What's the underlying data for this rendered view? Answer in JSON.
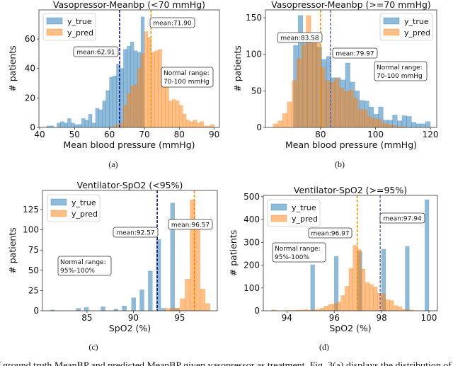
{
  "panel_labels": [
    "(a)",
    "(b)",
    "(c)",
    "(d)"
  ],
  "caption_fragment": "f ground truth MeanBP and predicted MeanBP given vasopressor as treatment. Fig. 3(a) displays the distribution of r",
  "colors": {
    "y_true": "#1f77b4",
    "y_pred": "#ff7f0e",
    "mean_true_a": "#00008b",
    "mean_true_b": "#5b6db5",
    "mean_pred": "#ff8c00"
  },
  "chart_data": [
    {
      "type": "bar",
      "title": "Vasopressor-Meanbp (<70 mmHg)",
      "xlabel": "Mean blood pressure (mmHg)",
      "ylabel": "# patients",
      "xlim": [
        39.8,
        91.5
      ],
      "ylim": [
        0,
        79.7
      ],
      "xticks": [
        "40",
        "50",
        "60",
        "70",
        "80",
        "90"
      ],
      "yticks": [
        "0",
        "20",
        "40",
        "60"
      ],
      "grid": false,
      "legend": {
        "placement": "top-left",
        "entries": [
          "y_true",
          "y_pred"
        ]
      },
      "series": [
        {
          "name": "y_true",
          "bin_start": 42,
          "bin_width": 1,
          "counts": [
            1,
            1,
            0,
            3,
            4,
            3,
            6,
            3,
            2,
            2,
            6,
            5,
            9,
            3,
            13,
            12,
            18,
            25,
            34,
            35,
            43,
            40,
            53,
            55,
            58,
            52,
            51,
            75
          ]
        },
        {
          "name": "y_pred",
          "bin_start": 61,
          "bin_width": 1,
          "counts": [
            1,
            2,
            3,
            15,
            23,
            28,
            29,
            40,
            50,
            65,
            61,
            51,
            52,
            53,
            36,
            33,
            18,
            19,
            18,
            15,
            9,
            5,
            4,
            5,
            3,
            4,
            1,
            1,
            2
          ]
        }
      ],
      "mean_lines": [
        {
          "series": "y_true",
          "value": 62.91,
          "color_key": "mean_true_a"
        },
        {
          "series": "y_pred",
          "value": 71.9,
          "color_key": "mean_pred"
        }
      ],
      "annotations": [
        "mean:62.91",
        "mean:71.90",
        "Normal range:",
        "70-100 mmHg"
      ]
    },
    {
      "type": "bar",
      "title": "Vasopressor-Meanbp (>=70 mmHg)",
      "xlabel": "Mean blood pressure (mmHg)",
      "ylabel": "# patients",
      "xlim": [
        59.9,
        122.3
      ],
      "ylim": [
        0,
        160.6
      ],
      "xticks": [
        "80",
        "100",
        "120"
      ],
      "yticks": [
        "0",
        "50",
        "100",
        "150"
      ],
      "grid": false,
      "legend": {
        "placement": "top-right",
        "entries": [
          "y_true",
          "y_pred"
        ]
      },
      "series": [
        {
          "name": "y_true",
          "bin_start": 70.1,
          "bin_width": 1.72,
          "counts": [
            112,
            153,
            120,
            118,
            115,
            110,
            93,
            97,
            68,
            68,
            65,
            88,
            62,
            50,
            37,
            36,
            28,
            18,
            28,
            10,
            10,
            17,
            9,
            16,
            15,
            7,
            5,
            5,
            8
          ]
        },
        {
          "name": "y_pred",
          "bin_start": 62.7,
          "bin_width": 1.72,
          "counts": [
            5,
            9,
            19,
            35,
            64,
            94,
            113,
            153,
            123,
            115,
            82,
            64,
            62,
            67,
            54,
            49,
            51,
            40,
            25,
            24,
            15,
            12,
            11,
            6,
            4,
            3,
            1,
            1
          ]
        }
      ],
      "mean_lines": [
        {
          "series": "y_pred",
          "value": 79.97,
          "color_key": "mean_pred"
        },
        {
          "series": "y_true",
          "value": 83.58,
          "color_key": "mean_true_b"
        }
      ],
      "annotations": [
        "mean:83.58",
        "mean:79.97",
        "Normal range:",
        "70-100 mmHg"
      ]
    },
    {
      "type": "bar",
      "title": "Ventilator-SpO2 (<95%)",
      "xlabel": "SpO2 (%)",
      "ylabel": "# patients",
      "xlim": [
        80.2,
        99.05
      ],
      "ylim": [
        0,
        148.6
      ],
      "xticks": [
        "85",
        "90",
        "95"
      ],
      "yticks": [
        "0",
        "25",
        "50",
        "75",
        "100",
        "125"
      ],
      "grid": false,
      "legend": {
        "placement": "top-left",
        "entries": [
          "y_true",
          "y_pred"
        ]
      },
      "series": [
        {
          "name": "y_true",
          "bin_width": 0.45,
          "x": [
            81.05,
            83.85,
            84.7,
            86.5,
            87.9,
            88.8,
            89.8,
            90.7,
            91.6,
            92.5,
            93.0,
            94.0,
            94.5
          ],
          "counts": [
            1,
            3,
            4,
            5,
            2,
            6,
            16,
            26,
            49,
            88,
            3,
            133,
            3
          ]
        },
        {
          "name": "y_pred",
          "bin_start": 93.42,
          "bin_width": 0.54,
          "counts": [
            3,
            3,
            3,
            15,
            39,
            137,
            100,
            27,
            9
          ]
        }
      ],
      "mean_lines": [
        {
          "series": "y_true",
          "value": 92.57,
          "color_key": "mean_true_a"
        },
        {
          "series": "y_pred",
          "value": 96.57,
          "color_key": "mean_pred"
        }
      ],
      "annotations": [
        "mean:92.57",
        "mean:96.57",
        "Normal range:",
        "95%-100%"
      ]
    },
    {
      "type": "bar",
      "title": "Ventilator-SpO2 (>=95%)",
      "xlabel": "SpO2 (%)",
      "ylabel": "# patients",
      "xlim": [
        93.0,
        100.36
      ],
      "ylim": [
        0,
        506
      ],
      "xticks": [
        "94",
        "96",
        "98",
        "100"
      ],
      "yticks": [
        "0",
        "100",
        "200",
        "300",
        "400",
        "500"
      ],
      "grid": false,
      "legend": {
        "placement": "top-left",
        "entries": [
          "y_true",
          "y_pred"
        ]
      },
      "series": [
        {
          "name": "y_true",
          "bin_width": 0.17,
          "x": [
            95.0,
            96.0,
            97.0,
            98.0,
            99.0,
            99.83
          ],
          "counts": [
            202,
            238,
            260,
            270,
            282,
            487
          ]
        },
        {
          "name": "y_pred",
          "bin_start": 93.35,
          "bin_width": 0.172,
          "counts": [
            4,
            1,
            0,
            1,
            2,
            2,
            3,
            4,
            5,
            3,
            5,
            7,
            12,
            21,
            28,
            31,
            38,
            67,
            107,
            186,
            287,
            269,
            183,
            124,
            116,
            105,
            77,
            74,
            49,
            45,
            23,
            18,
            7,
            5,
            3
          ]
        }
      ],
      "mean_lines": [
        {
          "series": "y_pred",
          "value": 96.97,
          "color_key": "mean_pred"
        },
        {
          "series": "y_true",
          "value": 97.94,
          "color_key": "mean_true_b"
        }
      ],
      "annotations": [
        "mean:96.97",
        "mean:97.94",
        "Normal range:",
        "95%-100%"
      ]
    }
  ]
}
